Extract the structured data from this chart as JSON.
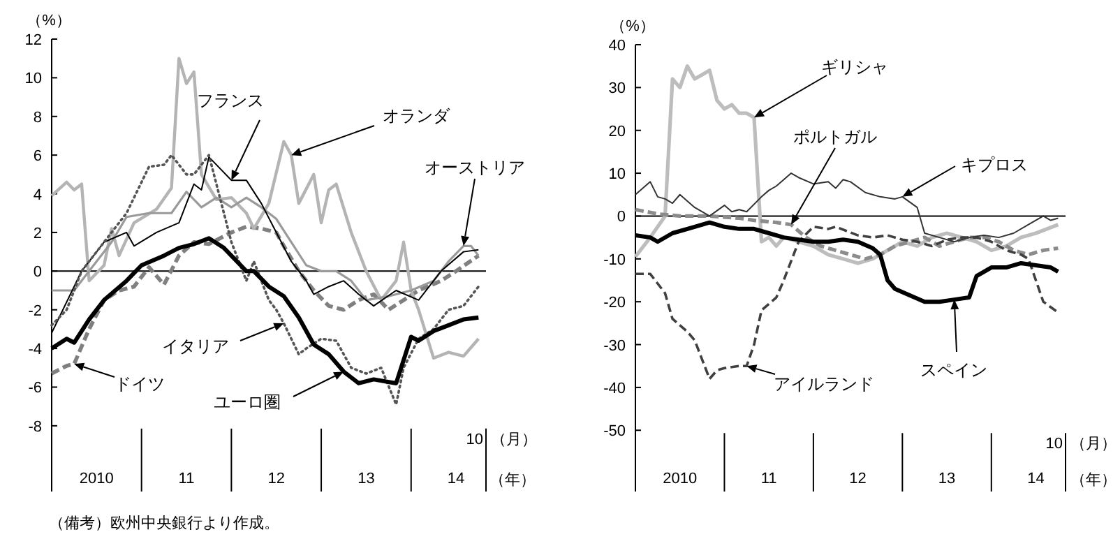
{
  "chart_data": [
    {
      "type": "line",
      "ylabel": "（%）",
      "xlabel": "（月）",
      "xlim": [
        "2010-01",
        "2014-11"
      ],
      "ylim": [
        -11.4,
        12
      ],
      "yticks": [
        -8,
        -6,
        -4,
        -2,
        0,
        2,
        4,
        6,
        8,
        10,
        12
      ],
      "xticks": [
        {
          "value": "2010-01",
          "label": null
        },
        {
          "value": "2010-07",
          "label": "2010"
        },
        {
          "value": "2011-01",
          "label": null
        },
        {
          "value": "2011-07",
          "label": "11"
        },
        {
          "value": "2012-01",
          "label": null
        },
        {
          "value": "2012-07",
          "label": "12"
        },
        {
          "value": "2013-01",
          "label": null
        },
        {
          "value": "2013-07",
          "label": "13"
        },
        {
          "value": "2014-01",
          "label": null
        },
        {
          "value": "2014-07",
          "label": "14"
        },
        {
          "value": "2014-11",
          "label": null
        }
      ],
      "ref_lines": [
        {
          "axis": "y",
          "value": 0,
          "color": "#000000"
        }
      ],
      "series": [
        {
          "color": "#808080",
          "line_style": "dashed",
          "x": [
            "2010-01",
            "2010-03",
            "2010-04",
            "2010-06",
            "2010-08",
            "2010-10",
            "2010-12",
            "2011-02",
            "2011-04",
            "2011-06",
            "2011-08",
            "2011-10",
            "2012-01",
            "2012-03",
            "2012-05",
            "2012-07",
            "2012-08",
            "2012-10",
            "2012-12",
            "2013-02",
            "2013-04",
            "2013-06",
            "2013-08",
            "2013-10",
            "2013-12",
            "2014-02",
            "2014-05",
            "2014-07",
            "2014-10"
          ],
          "values": [
            -5.3,
            -4.9,
            -4.8,
            -3,
            -1.5,
            -1,
            -0.8,
            0.2,
            -0.7,
            0.8,
            1.5,
            1.4,
            2,
            2.3,
            2.2,
            2,
            1.3,
            0,
            -1,
            -1.8,
            -2,
            -1.5,
            -1.2,
            -2,
            -1.5,
            -1,
            -0.5,
            0,
            0.8
          ]
        },
        {
          "color": "#b4b4b4",
          "line_style": "solid",
          "x": [
            "2010-01",
            "2010-03",
            "2010-04",
            "2010-05",
            "2010-06",
            "2010-08",
            "2010-09",
            "2010-10",
            "2010-12",
            "2011-03",
            "2011-05",
            "2011-06",
            "2011-07",
            "2011-08",
            "2011-09",
            "2011-11",
            "2012-01",
            "2012-03",
            "2012-04",
            "2012-06",
            "2012-08",
            "2012-09",
            "2012-10",
            "2012-12",
            "2013-01",
            "2013-02",
            "2013-03",
            "2013-05",
            "2013-07",
            "2013-09",
            "2013-11",
            "2013-12",
            "2014-01",
            "2014-02",
            "2014-04",
            "2014-06",
            "2014-08",
            "2014-10"
          ],
          "values": [
            3.9,
            4.6,
            4.2,
            4.5,
            -0.5,
            0.3,
            2.2,
            0.8,
            2.5,
            3.2,
            4.3,
            11,
            9.7,
            10.3,
            5,
            3.7,
            3.8,
            3,
            2.2,
            3.5,
            6.7,
            6,
            3.5,
            5,
            2.5,
            4.2,
            4.5,
            2,
            0,
            -1.5,
            -0.5,
            1.5,
            -1,
            -2,
            -4.5,
            -4.2,
            -4.4,
            -3.5
          ]
        },
        {
          "color": "#9a9a9a",
          "line_style": "solid",
          "x": [
            "2010-01",
            "2010-04",
            "2010-06",
            "2010-09",
            "2010-11",
            "2011-02",
            "2011-05",
            "2011-07",
            "2011-09",
            "2011-11",
            "2012-01",
            "2012-03",
            "2012-05",
            "2012-07",
            "2012-09",
            "2012-11",
            "2013-01",
            "2013-03",
            "2013-05",
            "2013-07",
            "2013-10",
            "2014-01",
            "2014-04",
            "2014-06",
            "2014-08",
            "2014-09",
            "2014-10"
          ],
          "values": [
            -1,
            -1,
            0,
            1.5,
            2.8,
            3,
            3,
            4.1,
            3.3,
            3.8,
            3.3,
            3.8,
            3.3,
            2.7,
            1.5,
            0.3,
            0,
            0,
            -0.5,
            -1.5,
            -1.3,
            -1,
            -0.5,
            0.5,
            1.3,
            1.3,
            0.8
          ]
        },
        {
          "color": "#000000",
          "line_style": "solid",
          "x": [
            "2010-01",
            "2010-05",
            "2010-08",
            "2010-11",
            "2010-12",
            "2011-03",
            "2011-06",
            "2011-08",
            "2011-09",
            "2011-10",
            "2012-01",
            "2012-03",
            "2012-05",
            "2012-07",
            "2012-09",
            "2012-11",
            "2012-12",
            "2013-02",
            "2013-04",
            "2013-06",
            "2013-08",
            "2013-11",
            "2014-02",
            "2014-05",
            "2014-08",
            "2014-10"
          ],
          "values": [
            -3.2,
            0,
            1.5,
            2,
            1.3,
            2,
            2.5,
            4.5,
            4.2,
            5.9,
            4.7,
            4.7,
            3.5,
            2,
            0.5,
            -0.5,
            -1.2,
            -0.8,
            -0.5,
            -1.2,
            -1.8,
            -1,
            -1.5,
            0,
            1,
            1.1
          ]
        },
        {
          "color": "#555555",
          "line_style": "dotted",
          "x": [
            "2010-01",
            "2010-03",
            "2010-05",
            "2010-07",
            "2010-09",
            "2010-11",
            "2011-02",
            "2011-04",
            "2011-05",
            "2011-07",
            "2011-08",
            "2011-10",
            "2011-12",
            "2012-01",
            "2012-03",
            "2012-04",
            "2012-06",
            "2012-07",
            "2012-08",
            "2012-09",
            "2012-10",
            "2012-11",
            "2013-01",
            "2013-03",
            "2013-05",
            "2013-07",
            "2013-09",
            "2013-11",
            "2013-12",
            "2014-02",
            "2014-04",
            "2014-06",
            "2014-08",
            "2014-10"
          ],
          "values": [
            -2.8,
            -2,
            0,
            1,
            2,
            3,
            5.4,
            5.5,
            6,
            5,
            5,
            6,
            3,
            1.5,
            -0.5,
            0.5,
            -1.5,
            -2,
            -2.7,
            -3.5,
            -4.3,
            -4,
            -3.5,
            -3.6,
            -5,
            -5.3,
            -5,
            -6.9,
            -5,
            -3.5,
            -3,
            -2,
            -1.8,
            -0.8
          ]
        },
        {
          "color": "#000000",
          "line_style": "solid",
          "x": [
            "2010-01",
            "2010-03",
            "2010-04",
            "2010-06",
            "2010-08",
            "2010-11",
            "2011-01",
            "2011-04",
            "2011-06",
            "2011-08",
            "2011-10",
            "2011-12",
            "2012-03",
            "2012-04",
            "2012-06",
            "2012-08",
            "2012-10",
            "2012-12",
            "2013-02",
            "2013-04",
            "2013-06",
            "2013-08",
            "2013-11",
            "2014-01",
            "2014-02",
            "2014-04",
            "2014-06",
            "2014-08",
            "2014-10"
          ],
          "values": [
            -4,
            -3.5,
            -3.7,
            -2.5,
            -1.5,
            -0.5,
            0.3,
            0.8,
            1.2,
            1.4,
            1.7,
            1.2,
            0,
            0,
            -0.8,
            -1.3,
            -2.4,
            -3.8,
            -4.3,
            -5.2,
            -5.8,
            -5.6,
            -5.8,
            -3.4,
            -3.6,
            -3.1,
            -2.8,
            -2.5,
            -2.4
          ]
        }
      ],
      "annotations": [
        {
          "text": "フランス",
          "x": "2012-01",
          "y": 4.7
        },
        {
          "text": "オランダ",
          "x": "2012-09",
          "y": 6
        },
        {
          "text": "オーストリア",
          "x": "2014-08",
          "y": 1.3
        },
        {
          "text": "イタリア",
          "x": "2012-08",
          "y": -2.7
        },
        {
          "text": "ユーロ圏",
          "x": "2013-04",
          "y": -5.2
        },
        {
          "text": "ドイツ",
          "x": "2010-04",
          "y": -4.8
        },
        "10",
        "（年）",
        "（備考）欧州中央銀行より作成。"
      ]
    },
    {
      "type": "line",
      "ylabel": "（%）",
      "xlabel": "（月）",
      "xlim": [
        "2010-01",
        "2014-11"
      ],
      "ylim": [
        -64.3,
        40
      ],
      "yticks": [
        -50,
        -40,
        -30,
        -20,
        -10,
        0,
        10,
        20,
        30,
        40
      ],
      "xticks": [
        {
          "value": "2010-01",
          "label": null
        },
        {
          "value": "2010-07",
          "label": "2010"
        },
        {
          "value": "2011-01",
          "label": null
        },
        {
          "value": "2011-07",
          "label": "11"
        },
        {
          "value": "2012-01",
          "label": null
        },
        {
          "value": "2012-07",
          "label": "12"
        },
        {
          "value": "2013-01",
          "label": null
        },
        {
          "value": "2013-07",
          "label": "13"
        },
        {
          "value": "2014-01",
          "label": null
        },
        {
          "value": "2014-07",
          "label": "14"
        },
        {
          "value": "2014-11",
          "label": null
        }
      ],
      "ref_lines": [
        {
          "axis": "y",
          "value": 0,
          "color": "#000000"
        }
      ],
      "series": [
        {
          "color": "#bdbdbd",
          "line_style": "solid",
          "x": [
            "2010-01",
            "2010-03",
            "2010-05",
            "2010-06",
            "2010-07",
            "2010-08",
            "2010-09",
            "2010-10",
            "2010-11",
            "2010-12",
            "2011-01",
            "2011-02",
            "2011-03",
            "2011-04",
            "2011-05",
            "2011-06",
            "2011-07",
            "2011-08",
            "2011-09",
            "2011-11",
            "2012-01",
            "2012-03",
            "2012-05",
            "2012-07",
            "2012-09",
            "2012-11",
            "2013-01",
            "2013-03",
            "2013-05",
            "2013-07",
            "2013-09",
            "2013-11",
            "2014-01",
            "2014-03",
            "2014-05",
            "2014-07",
            "2014-10"
          ],
          "values": [
            -9.5,
            -5,
            0,
            32,
            30,
            35,
            32,
            33,
            34,
            27,
            25,
            26,
            24,
            24,
            23,
            -6,
            -5,
            -7,
            -5,
            -6,
            -7,
            -9,
            -10,
            -11,
            -10,
            -8,
            -6,
            -7,
            -5,
            -4,
            -5,
            -6,
            -8,
            -7,
            -5,
            -4,
            -2
          ]
        },
        {
          "color": "#8c8c8c",
          "line_style": "dashed",
          "x": [
            "2010-01",
            "2010-04",
            "2010-07",
            "2010-11",
            "2011-03",
            "2011-05",
            "2011-08",
            "2011-10",
            "2011-12",
            "2012-02",
            "2012-04",
            "2012-06",
            "2012-08",
            "2012-10",
            "2012-12",
            "2013-02",
            "2013-04",
            "2013-06",
            "2013-08",
            "2013-10",
            "2013-12",
            "2014-02",
            "2014-04",
            "2014-06",
            "2014-08",
            "2014-10"
          ],
          "values": [
            1.5,
            0.5,
            0,
            0,
            -0.5,
            -1,
            -1.5,
            -2,
            -5,
            -7,
            -8,
            -9,
            -10,
            -9,
            -7,
            -6,
            -5,
            -7,
            -6,
            -5,
            -5,
            -6,
            -8,
            -9,
            -8,
            -7.5
          ]
        },
        {
          "color": "#333333",
          "line_style": "solid",
          "x": [
            "2010-01",
            "2010-03",
            "2010-04",
            "2010-05",
            "2010-06",
            "2010-07",
            "2010-09",
            "2010-11",
            "2011-01",
            "2011-02",
            "2011-03",
            "2011-04",
            "2011-06",
            "2011-07",
            "2011-08",
            "2011-10",
            "2011-11",
            "2012-01",
            "2012-03",
            "2012-04",
            "2012-05",
            "2012-06",
            "2012-08",
            "2012-10",
            "2012-12",
            "2013-01",
            "2013-03",
            "2013-04",
            "2013-06",
            "2013-08",
            "2013-10",
            "2013-12",
            "2014-02",
            "2014-04",
            "2014-06",
            "2014-08",
            "2014-09",
            "2014-10"
          ],
          "values": [
            5,
            8,
            4.5,
            4,
            3,
            5,
            2,
            0,
            2.5,
            1,
            1.5,
            1,
            4.5,
            6,
            7,
            10,
            9,
            7.5,
            8,
            6.5,
            8.5,
            8,
            5.5,
            4.5,
            4,
            4.5,
            2,
            -4,
            -5,
            -6,
            -5,
            -4.5,
            -5,
            -4,
            -2,
            0,
            -1,
            -0.5
          ]
        },
        {
          "color": "#404040",
          "line_style": "dashed",
          "x": [
            "2010-01",
            "2010-03",
            "2010-05",
            "2010-06",
            "2010-08",
            "2010-09",
            "2010-11",
            "2010-12",
            "2011-01",
            "2011-03",
            "2011-04",
            "2011-05",
            "2011-06",
            "2011-08",
            "2011-09",
            "2011-11",
            "2012-01",
            "2012-03",
            "2012-04",
            "2012-07",
            "2012-09",
            "2012-11",
            "2013-01",
            "2013-03",
            "2013-05",
            "2013-07",
            "2013-09",
            "2013-11",
            "2014-01",
            "2014-03",
            "2014-05",
            "2014-06",
            "2014-08",
            "2014-10"
          ],
          "values": [
            -13.5,
            -13.5,
            -18,
            -24,
            -27,
            -29,
            -38,
            -36,
            -35.5,
            -35,
            -35,
            -30,
            -22,
            -19,
            -15,
            -6,
            -2.5,
            -3,
            -2.5,
            -4.5,
            -5,
            -4.5,
            -5.5,
            -6,
            -7,
            -5.5,
            -5,
            -5,
            -6,
            -8,
            -9,
            -10,
            -20,
            -22.5
          ]
        },
        {
          "color": "#000000",
          "line_style": "solid",
          "x": [
            "2010-01",
            "2010-03",
            "2010-04",
            "2010-06",
            "2010-09",
            "2010-11",
            "2011-01",
            "2011-03",
            "2011-05",
            "2011-07",
            "2011-09",
            "2011-11",
            "2012-01",
            "2012-03",
            "2012-05",
            "2012-07",
            "2012-09",
            "2012-10",
            "2012-11",
            "2012-12",
            "2013-02",
            "2013-04",
            "2013-06",
            "2013-08",
            "2013-10",
            "2013-11",
            "2014-01",
            "2014-03",
            "2014-05",
            "2014-07",
            "2014-09",
            "2014-10"
          ],
          "values": [
            -4.5,
            -5,
            -6,
            -4,
            -2.5,
            -1.5,
            -2.5,
            -3,
            -3,
            -4,
            -5,
            -5.5,
            -6,
            -6,
            -5.5,
            -6,
            -7.5,
            -9,
            -15,
            -17,
            -18.5,
            -20,
            -20,
            -19.5,
            -19,
            -14,
            -12,
            -12,
            -11,
            -11.5,
            -12,
            -13
          ]
        }
      ],
      "annotations": [
        {
          "text": "ギリシャ",
          "x": "2011-05",
          "y": 23
        },
        {
          "text": "ポルトガル",
          "x": "2011-10",
          "y": -2
        },
        {
          "text": "キプロス",
          "x": "2013-01",
          "y": 4.5
        },
        {
          "text": "スペイン",
          "x": "2013-08",
          "y": -19.5
        },
        {
          "text": "アイルランド",
          "x": "2011-04",
          "y": -35
        },
        "10",
        "（年）"
      ]
    }
  ]
}
